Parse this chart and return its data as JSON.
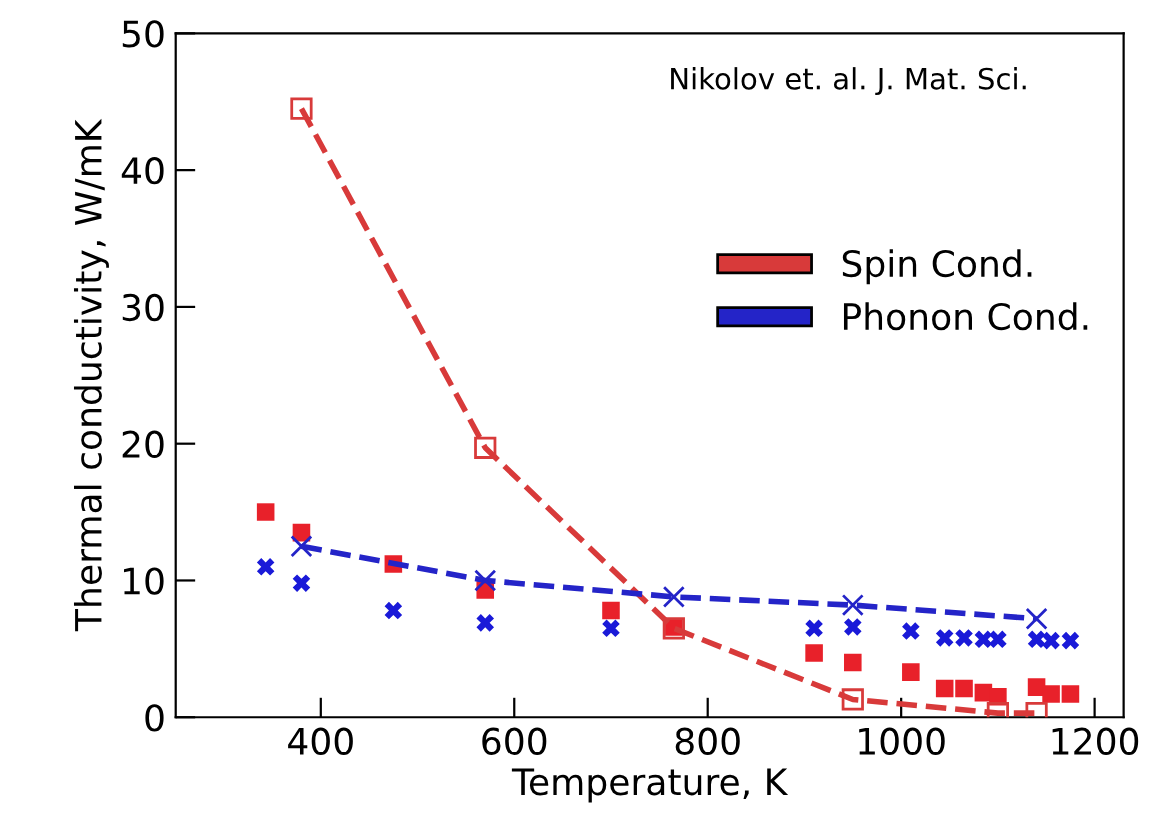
{
  "chart_data": {
    "type": "scatter",
    "xlabel": "Temperature, K",
    "ylabel": "Thermal conductivity, W/mK",
    "xlim": [
      250,
      1230
    ],
    "ylim": [
      0,
      50
    ],
    "xticks": [
      400,
      600,
      800,
      1000,
      1200
    ],
    "yticks": [
      0,
      10,
      20,
      30,
      40,
      50
    ],
    "grid": false,
    "legend": "right",
    "annotations": [
      "Nikolov et. al. J. Mat. Sci."
    ],
    "series": [
      {
        "marker": "square",
        "color": "#e8212a",
        "x": [
          343,
          380,
          475,
          570,
          700,
          765,
          910,
          950,
          1010,
          1045,
          1065,
          1085,
          1100,
          1140,
          1155,
          1175
        ],
        "values": [
          15,
          13.5,
          11.2,
          9.3,
          7.8,
          6.6,
          4.7,
          4,
          3.3,
          2.1,
          2.1,
          1.8,
          1.5,
          2.2,
          1.7,
          1.7
        ]
      },
      {
        "marker": "cross",
        "color": "#1a1ad8",
        "x": [
          343,
          380,
          475,
          570,
          700,
          910,
          950,
          1010,
          1045,
          1065,
          1085,
          1100,
          1140,
          1155,
          1175
        ],
        "values": [
          11,
          9.8,
          7.8,
          6.9,
          6.5,
          6.5,
          6.6,
          6.3,
          5.8,
          5.8,
          5.7,
          5.7,
          5.7,
          5.6,
          5.6
        ]
      },
      {
        "type": "line",
        "name": "Spin Cond.",
        "line_style": "dashed",
        "marker": "square",
        "color": "#d83a3a",
        "x": [
          380,
          570,
          765,
          950,
          1100,
          1140
        ],
        "values": [
          44.5,
          19.7,
          6.5,
          1.3,
          0.3,
          0.3
        ]
      },
      {
        "type": "line",
        "name": "Phonon Cond.",
        "line_style": "dashed",
        "marker": "cross",
        "color": "#2424c8",
        "x": [
          380,
          570,
          765,
          950,
          1140
        ],
        "values": [
          12.5,
          10,
          8.8,
          8.2,
          7.2
        ]
      }
    ]
  }
}
